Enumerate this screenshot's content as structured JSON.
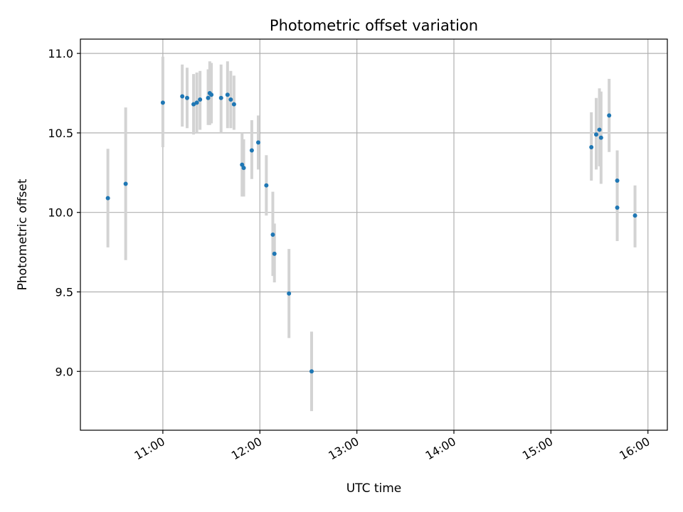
{
  "chart_data": {
    "type": "scatter",
    "title": "Photometric offset variation",
    "xlabel": "UTC time",
    "ylabel": "Photometric offset",
    "x_ticks": [
      "11:00",
      "12:00",
      "13:00",
      "14:00",
      "15:00",
      "16:00"
    ],
    "y_ticks": [
      "9.0",
      "9.5",
      "10.0",
      "10.5",
      "11.0"
    ],
    "xlim": [
      "10:09",
      "16:12"
    ],
    "ylim": [
      8.63,
      11.09
    ],
    "grid": true,
    "marker_color": "#1f77b4",
    "errorbar_color": "#d3d3d3",
    "points": [
      {
        "t": "10:26",
        "y": 10.09,
        "lo": 9.78,
        "hi": 10.4
      },
      {
        "t": "10:37",
        "y": 10.18,
        "lo": 9.7,
        "hi": 10.66
      },
      {
        "t": "11:00",
        "y": 10.69,
        "lo": 10.41,
        "hi": 10.98
      },
      {
        "t": "11:12",
        "y": 10.73,
        "lo": 10.54,
        "hi": 10.93
      },
      {
        "t": "11:15",
        "y": 10.72,
        "lo": 10.53,
        "hi": 10.91
      },
      {
        "t": "11:19",
        "y": 10.68,
        "lo": 10.49,
        "hi": 10.87
      },
      {
        "t": "11:21",
        "y": 10.69,
        "lo": 10.5,
        "hi": 10.88
      },
      {
        "t": "11:23",
        "y": 10.71,
        "lo": 10.52,
        "hi": 10.89
      },
      {
        "t": "11:28",
        "y": 10.72,
        "lo": 10.55,
        "hi": 10.9
      },
      {
        "t": "11:29",
        "y": 10.75,
        "lo": 10.55,
        "hi": 10.95
      },
      {
        "t": "11:30",
        "y": 10.74,
        "lo": 10.56,
        "hi": 10.94
      },
      {
        "t": "11:36",
        "y": 10.72,
        "lo": 10.5,
        "hi": 10.93
      },
      {
        "t": "11:40",
        "y": 10.74,
        "lo": 10.53,
        "hi": 10.95
      },
      {
        "t": "11:42",
        "y": 10.71,
        "lo": 10.53,
        "hi": 10.89
      },
      {
        "t": "11:44",
        "y": 10.68,
        "lo": 10.52,
        "hi": 10.86
      },
      {
        "t": "11:49",
        "y": 10.3,
        "lo": 10.1,
        "hi": 10.5
      },
      {
        "t": "11:50",
        "y": 10.28,
        "lo": 10.1,
        "hi": 10.46
      },
      {
        "t": "11:55",
        "y": 10.39,
        "lo": 10.21,
        "hi": 10.58
      },
      {
        "t": "11:59",
        "y": 10.44,
        "lo": 10.27,
        "hi": 10.61
      },
      {
        "t": "12:04",
        "y": 10.17,
        "lo": 9.98,
        "hi": 10.36
      },
      {
        "t": "12:08",
        "y": 9.86,
        "lo": 9.6,
        "hi": 10.13
      },
      {
        "t": "12:09",
        "y": 9.74,
        "lo": 9.56,
        "hi": 9.93
      },
      {
        "t": "12:18",
        "y": 9.49,
        "lo": 9.21,
        "hi": 9.77
      },
      {
        "t": "12:32",
        "y": 9.0,
        "lo": 8.75,
        "hi": 9.25
      },
      {
        "t": "15:25",
        "y": 10.41,
        "lo": 10.2,
        "hi": 10.63
      },
      {
        "t": "15:28",
        "y": 10.49,
        "lo": 10.27,
        "hi": 10.72
      },
      {
        "t": "15:30",
        "y": 10.52,
        "lo": 10.29,
        "hi": 10.78
      },
      {
        "t": "15:31",
        "y": 10.47,
        "lo": 10.18,
        "hi": 10.76
      },
      {
        "t": "15:36",
        "y": 10.61,
        "lo": 10.38,
        "hi": 10.84
      },
      {
        "t": "15:41",
        "y": 10.2,
        "lo": 10.01,
        "hi": 10.39
      },
      {
        "t": "15:41",
        "y": 10.03,
        "lo": 9.82,
        "hi": 10.23
      },
      {
        "t": "15:52",
        "y": 9.98,
        "lo": 9.78,
        "hi": 10.17
      }
    ]
  }
}
